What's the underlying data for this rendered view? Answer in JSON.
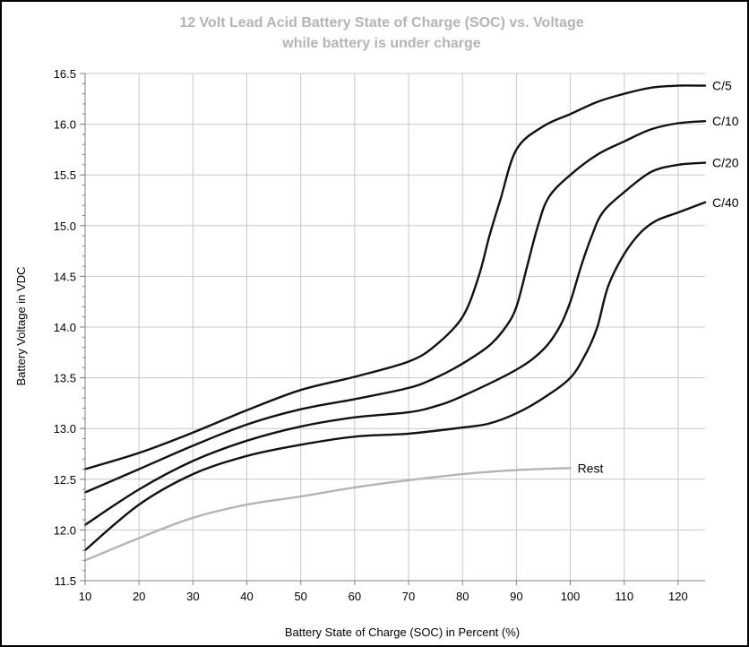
{
  "chart_data": {
    "type": "line",
    "title": "12 Volt Lead Acid Battery State of Charge (SOC) vs. Voltage",
    "subtitle": "while battery is under charge",
    "xlabel": "Battery State of Charge (SOC) in Percent (%)",
    "ylabel": "Battery Voltage in VDC",
    "xlim": [
      10,
      125
    ],
    "ylim": [
      11.5,
      16.5
    ],
    "x_ticks": [
      "10",
      "20",
      "30",
      "40",
      "50",
      "60",
      "70",
      "80",
      "90",
      "100",
      "110",
      "120"
    ],
    "y_ticks": [
      "11.5",
      "12.0",
      "12.5",
      "13.0",
      "13.5",
      "14.0",
      "14.5",
      "15.0",
      "15.5",
      "16.0",
      "16.5"
    ],
    "grid": true,
    "series": [
      {
        "name": "C/5",
        "color": "#111111",
        "points": [
          [
            10,
            12.6
          ],
          [
            20,
            12.76
          ],
          [
            30,
            12.96
          ],
          [
            40,
            13.18
          ],
          [
            50,
            13.38
          ],
          [
            60,
            13.51
          ],
          [
            70,
            13.66
          ],
          [
            75,
            13.82
          ],
          [
            80,
            14.1
          ],
          [
            83,
            14.5
          ],
          [
            85,
            14.9
          ],
          [
            87,
            15.25
          ],
          [
            90,
            15.75
          ],
          [
            95,
            15.98
          ],
          [
            100,
            16.1
          ],
          [
            105,
            16.22
          ],
          [
            110,
            16.3
          ],
          [
            115,
            16.36
          ],
          [
            120,
            16.38
          ],
          [
            125,
            16.38
          ]
        ]
      },
      {
        "name": "C/10",
        "color": "#111111",
        "points": [
          [
            10,
            12.37
          ],
          [
            20,
            12.6
          ],
          [
            30,
            12.83
          ],
          [
            40,
            13.04
          ],
          [
            50,
            13.19
          ],
          [
            60,
            13.29
          ],
          [
            70,
            13.4
          ],
          [
            75,
            13.5
          ],
          [
            80,
            13.64
          ],
          [
            85,
            13.82
          ],
          [
            88,
            14.0
          ],
          [
            90,
            14.2
          ],
          [
            92,
            14.6
          ],
          [
            94,
            15.0
          ],
          [
            96,
            15.28
          ],
          [
            100,
            15.5
          ],
          [
            105,
            15.7
          ],
          [
            110,
            15.83
          ],
          [
            115,
            15.95
          ],
          [
            120,
            16.01
          ],
          [
            125,
            16.03
          ]
        ]
      },
      {
        "name": "C/20",
        "color": "#111111",
        "points": [
          [
            10,
            12.05
          ],
          [
            20,
            12.4
          ],
          [
            30,
            12.68
          ],
          [
            40,
            12.88
          ],
          [
            50,
            13.02
          ],
          [
            60,
            13.11
          ],
          [
            70,
            13.16
          ],
          [
            75,
            13.22
          ],
          [
            80,
            13.32
          ],
          [
            90,
            13.58
          ],
          [
            95,
            13.78
          ],
          [
            98,
            14.0
          ],
          [
            100,
            14.25
          ],
          [
            102,
            14.6
          ],
          [
            104,
            14.9
          ],
          [
            106,
            15.13
          ],
          [
            110,
            15.33
          ],
          [
            115,
            15.53
          ],
          [
            120,
            15.6
          ],
          [
            125,
            15.62
          ]
        ]
      },
      {
        "name": "C/40",
        "color": "#111111",
        "points": [
          [
            10,
            11.8
          ],
          [
            20,
            12.25
          ],
          [
            30,
            12.55
          ],
          [
            40,
            12.73
          ],
          [
            50,
            12.84
          ],
          [
            60,
            12.92
          ],
          [
            70,
            12.95
          ],
          [
            80,
            13.01
          ],
          [
            85,
            13.05
          ],
          [
            90,
            13.15
          ],
          [
            95,
            13.3
          ],
          [
            100,
            13.5
          ],
          [
            103,
            13.75
          ],
          [
            105,
            14.0
          ],
          [
            107,
            14.4
          ],
          [
            110,
            14.72
          ],
          [
            113,
            14.93
          ],
          [
            116,
            15.05
          ],
          [
            120,
            15.13
          ],
          [
            125,
            15.23
          ]
        ]
      },
      {
        "name": "Rest",
        "color": "#b4b4b4",
        "points": [
          [
            10,
            11.7
          ],
          [
            20,
            11.92
          ],
          [
            30,
            12.12
          ],
          [
            40,
            12.25
          ],
          [
            50,
            12.33
          ],
          [
            60,
            12.42
          ],
          [
            70,
            12.49
          ],
          [
            80,
            12.55
          ],
          [
            90,
            12.59
          ],
          [
            100,
            12.61
          ]
        ]
      }
    ]
  }
}
